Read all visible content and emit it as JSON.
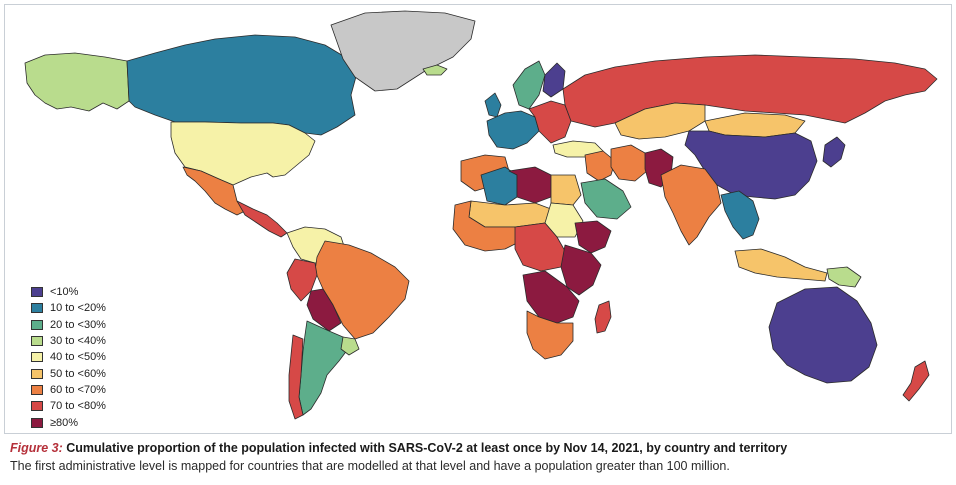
{
  "legend": {
    "items": [
      {
        "label": "<10%",
        "color": "#4c3f8f"
      },
      {
        "label": "10 to <20%",
        "color": "#2c7f9f"
      },
      {
        "label": "20 to <30%",
        "color": "#5dae8b"
      },
      {
        "label": "30 to <40%",
        "color": "#b9dc8d"
      },
      {
        "label": "40 to <50%",
        "color": "#f6f2a8"
      },
      {
        "label": "50 to <60%",
        "color": "#f6c46a"
      },
      {
        "label": "60 to <70%",
        "color": "#ec8043"
      },
      {
        "label": "70 to <80%",
        "color": "#d64947"
      },
      {
        "label": "≥80%",
        "color": "#8c1a40"
      }
    ]
  },
  "caption": {
    "prefix": "Figure 3:",
    "title": " Cumulative proportion of the population infected with SARS-CoV-2 at least once by Nov 14, 2021, by country and territory",
    "note": "The first administrative level is mapped for countries that are modelled at that level and have a population greater than 100 million."
  },
  "regions": [
    {
      "id": "alaska",
      "bin": 3
    },
    {
      "id": "canada",
      "bin": 1
    },
    {
      "id": "greenland",
      "bin": "nodata"
    },
    {
      "id": "usa",
      "bin": 4
    },
    {
      "id": "mexico",
      "bin": 6
    },
    {
      "id": "central-america",
      "bin": 7
    },
    {
      "id": "colombia-venezuela",
      "bin": 4
    },
    {
      "id": "brazil",
      "bin": 6
    },
    {
      "id": "peru",
      "bin": 7
    },
    {
      "id": "bolivia",
      "bin": 8
    },
    {
      "id": "argentina-chile",
      "bin": 2
    },
    {
      "id": "uruguay",
      "bin": 3
    },
    {
      "id": "chile-south",
      "bin": 7
    },
    {
      "id": "iceland",
      "bin": 3
    },
    {
      "id": "scandinavia",
      "bin": 2
    },
    {
      "id": "finland",
      "bin": 0
    },
    {
      "id": "uk",
      "bin": 1
    },
    {
      "id": "western-europe",
      "bin": 1
    },
    {
      "id": "eastern-europe",
      "bin": 7
    },
    {
      "id": "russia",
      "bin": 7
    },
    {
      "id": "kazakhstan",
      "bin": 5
    },
    {
      "id": "mongolia",
      "bin": 5
    },
    {
      "id": "china",
      "bin": 0
    },
    {
      "id": "japan",
      "bin": 0
    },
    {
      "id": "turkey",
      "bin": 4
    },
    {
      "id": "middle-east",
      "bin": 6
    },
    {
      "id": "iran",
      "bin": 6
    },
    {
      "id": "afghanistan-pakistan",
      "bin": 8
    },
    {
      "id": "india",
      "bin": 6
    },
    {
      "id": "southeast-asia",
      "bin": 1
    },
    {
      "id": "indonesia",
      "bin": 5
    },
    {
      "id": "papua",
      "bin": 3
    },
    {
      "id": "australia",
      "bin": 0
    },
    {
      "id": "new-zealand",
      "bin": 7
    },
    {
      "id": "morocco-algeria",
      "bin": 6
    },
    {
      "id": "algeria-center",
      "bin": 1
    },
    {
      "id": "libya",
      "bin": 8
    },
    {
      "id": "egypt",
      "bin": 5
    },
    {
      "id": "sahel",
      "bin": 5
    },
    {
      "id": "sudan",
      "bin": 4
    },
    {
      "id": "ethiopia",
      "bin": 8
    },
    {
      "id": "saudi-arabia",
      "bin": 2
    },
    {
      "id": "west-africa",
      "bin": 6
    },
    {
      "id": "central-africa",
      "bin": 7
    },
    {
      "id": "east-africa",
      "bin": 8
    },
    {
      "id": "southern-central-africa",
      "bin": 8
    },
    {
      "id": "southern-africa",
      "bin": 6
    },
    {
      "id": "madagascar",
      "bin": 7
    }
  ]
}
